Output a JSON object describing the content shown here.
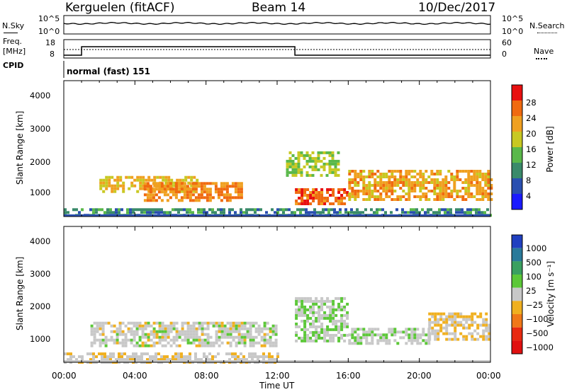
{
  "header": {
    "title": "Kerguelen (fitACF)",
    "beam": "Beam 14",
    "date": "10/Dec/2017"
  },
  "summary": {
    "left_labels": {
      "nsky": "N.Sky",
      "freq_line1": "Freq.",
      "freq_line2": "[MHz]",
      "cpid": "CPID"
    },
    "right_labels": {
      "nsearch": "N.Search",
      "nave": "Nave"
    },
    "noise_ticks": [
      "10^5",
      "10^0"
    ],
    "freq_ticks": [
      "18",
      "8"
    ],
    "nave_ticks": [
      "60",
      "0"
    ],
    "cpid_text": "normal (fast) 151"
  },
  "axes": {
    "time_ticks": [
      "00:00",
      "04:00",
      "08:00",
      "12:00",
      "16:00",
      "20:00",
      "00:00"
    ],
    "time_label": "Time UT",
    "range_ticks": [
      "1000",
      "2000",
      "3000",
      "4000"
    ],
    "range_label": "Slant Range [km]"
  },
  "power_scale": {
    "label": "Power [dB]",
    "ticks": [
      "4",
      "8",
      "12",
      "16",
      "20",
      "24",
      "28"
    ],
    "colors": [
      "#1a1aff",
      "#2a4fb0",
      "#3a8a6a",
      "#5ab84a",
      "#c8c822",
      "#f0a020",
      "#f06a10",
      "#e81010"
    ]
  },
  "velocity_scale": {
    "label": "Velocity [m s⁻¹]",
    "ticks": [
      "1000",
      "500",
      "100",
      "25",
      "−25",
      "−100",
      "−500",
      "−1000"
    ],
    "colors": [
      "#2040c0",
      "#2a7a9a",
      "#3aa060",
      "#5cc838",
      "#c8c8c8",
      "#f0b020",
      "#f07818",
      "#e82a10",
      "#e01010"
    ]
  },
  "chart_data": [
    {
      "type": "heatmap",
      "title": "",
      "quantity": "Power",
      "unit": "dB",
      "xlabel": "Time UT",
      "ylabel": "Slant Range [km]",
      "xlim": [
        "00:00",
        "24:00"
      ],
      "ylim": [
        180,
        4600
      ],
      "clim": [
        0,
        32
      ],
      "regions": [
        {
          "t_start": 2.0,
          "t_end": 7.5,
          "r_low": 1000,
          "r_high": 1500,
          "value": 20
        },
        {
          "t_start": 4.5,
          "t_end": 10.0,
          "r_low": 700,
          "r_high": 1300,
          "value": 24
        },
        {
          "t_start": 13.0,
          "t_end": 16.0,
          "r_low": 600,
          "r_high": 1100,
          "value": 27
        },
        {
          "t_start": 16.0,
          "t_end": 24.0,
          "r_low": 700,
          "r_high": 1700,
          "value": 22
        },
        {
          "t_start": 12.5,
          "t_end": 15.5,
          "r_low": 1500,
          "r_high": 2300,
          "value": 16
        },
        {
          "t_start": 0.0,
          "t_end": 24.0,
          "r_low": 200,
          "r_high": 450,
          "value": 10
        }
      ]
    },
    {
      "type": "heatmap",
      "title": "",
      "quantity": "Velocity",
      "unit": "m s-1",
      "xlabel": "Time UT",
      "ylabel": "Slant Range [km]",
      "xlim": [
        "00:00",
        "24:00"
      ],
      "ylim": [
        180,
        4600
      ],
      "clim": [
        -1000,
        1000
      ],
      "regions": [
        {
          "t_start": 1.5,
          "t_end": 12.0,
          "r_low": 700,
          "r_high": 1500,
          "value": 0
        },
        {
          "t_start": 13.0,
          "t_end": 16.0,
          "r_low": 900,
          "r_high": 2300,
          "value": 80
        },
        {
          "t_start": 16.0,
          "t_end": 20.5,
          "r_low": 800,
          "r_high": 1300,
          "value": 60
        },
        {
          "t_start": 20.5,
          "t_end": 24.0,
          "r_low": 900,
          "r_high": 1800,
          "value": -100
        },
        {
          "t_start": 0.0,
          "t_end": 12.0,
          "r_low": 200,
          "r_high": 500,
          "value": -60
        }
      ]
    }
  ]
}
